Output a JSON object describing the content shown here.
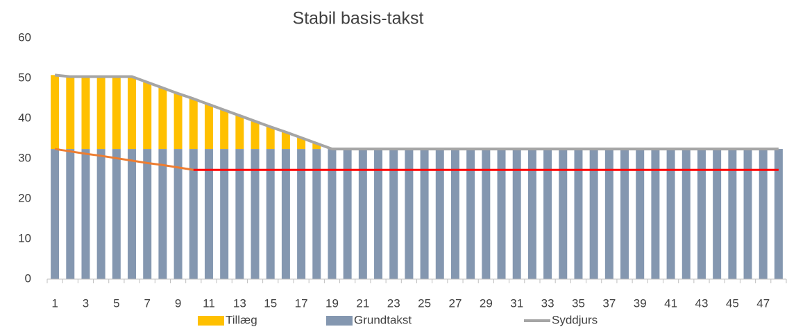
{
  "chart_data": {
    "type": "bar",
    "stacked": true,
    "title": "Stabil basis-takst",
    "categories": [
      1,
      null,
      3,
      null,
      5,
      null,
      7,
      null,
      9,
      null,
      11,
      null,
      13,
      null,
      15,
      null,
      17,
      null,
      19,
      null,
      21,
      null,
      23,
      null,
      25,
      null,
      27,
      null,
      29,
      null,
      31,
      null,
      33,
      null,
      35,
      null,
      37,
      null,
      39,
      null,
      41,
      null,
      43,
      null,
      45,
      null,
      47,
      null
    ],
    "series": [
      {
        "name": "Tillæg",
        "kind": "bar",
        "color": "#ffc000",
        "values": [
          18.4,
          18,
          18,
          18,
          18,
          18,
          16.6,
          15.2,
          13.8,
          12.5,
          11.1,
          9.7,
          8.3,
          6.9,
          5.5,
          4.2,
          2.8,
          1.4,
          0,
          0,
          0,
          0,
          0,
          0,
          0,
          0,
          0,
          0,
          0,
          0,
          0,
          0,
          0,
          0,
          0,
          0,
          0,
          0,
          0,
          0,
          0,
          0,
          0,
          0,
          0,
          0,
          0,
          0
        ]
      },
      {
        "name": "Grundtakst",
        "kind": "bar",
        "color": "#8497b0",
        "values": [
          32.4,
          32.4,
          32.4,
          32.4,
          32.4,
          32.4,
          32.4,
          32.4,
          32.4,
          32.4,
          32.4,
          32.4,
          32.4,
          32.4,
          32.4,
          32.4,
          32.4,
          32.4,
          32.4,
          32.4,
          32.4,
          32.4,
          32.4,
          32.4,
          32.4,
          32.4,
          32.4,
          32.4,
          32.4,
          32.4,
          32.4,
          32.4,
          32.4,
          32.4,
          32.4,
          32.4,
          32.4,
          32.4,
          32.4,
          32.4,
          32.4,
          32.4,
          32.4,
          32.4,
          32.4,
          32.4,
          32.4,
          32.4
        ]
      },
      {
        "name": "Syddjurs",
        "kind": "line",
        "color": "#a5a5a5",
        "values": [
          50.8,
          50.4,
          50.4,
          50.4,
          50.4,
          50.4,
          49,
          47.6,
          46.2,
          44.9,
          43.5,
          42.1,
          40.7,
          39.3,
          37.9,
          36.6,
          35.2,
          33.8,
          32.4,
          32.4,
          32.4,
          32.4,
          32.4,
          32.4,
          32.4,
          32.4,
          32.4,
          32.4,
          32.4,
          32.4,
          32.4,
          32.4,
          32.4,
          32.4,
          32.4,
          32.4,
          32.4,
          32.4,
          32.4,
          32.4,
          32.4,
          32.4,
          32.4,
          32.4,
          32.4,
          32.4,
          32.4,
          32.4
        ]
      },
      {
        "kind": "line",
        "color": "#ed7d31",
        "values": [
          32.4,
          31.8,
          31.2,
          30.7,
          30.1,
          29.5,
          28.9,
          28.4,
          27.8,
          27.2,
          null,
          null,
          null,
          null,
          null,
          null,
          null,
          null,
          null,
          null,
          null,
          null,
          null,
          null,
          null,
          null,
          null,
          null,
          null,
          null,
          null,
          null,
          null,
          null,
          null,
          null,
          null,
          null,
          null,
          null,
          null,
          null,
          null,
          null,
          null,
          null,
          null,
          null
        ]
      },
      {
        "kind": "line",
        "color": "#ff0000",
        "values": [
          null,
          null,
          null,
          null,
          null,
          null,
          null,
          null,
          null,
          27.2,
          27.2,
          27.2,
          27.2,
          27.2,
          27.2,
          27.2,
          27.2,
          27.2,
          27.2,
          27.2,
          27.2,
          27.2,
          27.2,
          27.2,
          27.2,
          27.2,
          27.2,
          27.2,
          27.2,
          27.2,
          27.2,
          27.2,
          27.2,
          27.2,
          27.2,
          27.2,
          27.2,
          27.2,
          27.2,
          27.2,
          27.2,
          27.2,
          27.2,
          27.2,
          27.2,
          27.2,
          27.2,
          27.2
        ]
      }
    ],
    "ylim": [
      0,
      60
    ],
    "yticks": [
      0,
      10,
      20,
      30,
      40,
      50,
      60
    ],
    "grid": false,
    "legend": "bottom"
  }
}
